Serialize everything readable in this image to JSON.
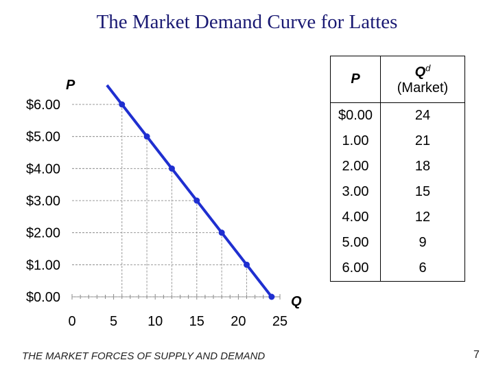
{
  "slide": {
    "title": "The Market Demand Curve for Lattes",
    "footer": "THE MARKET FORCES OF SUPPLY AND DEMAND",
    "page_number": "7"
  },
  "table": {
    "header_price": "P",
    "header_qty_main": "Q",
    "header_qty_sup": "d",
    "header_qty_sub": "(Market)",
    "rows": [
      {
        "price": "$0.00",
        "qty": "24"
      },
      {
        "price": "1.00",
        "qty": "21"
      },
      {
        "price": "2.00",
        "qty": "18"
      },
      {
        "price": "3.00",
        "qty": "15"
      },
      {
        "price": "4.00",
        "qty": "12"
      },
      {
        "price": "5.00",
        "qty": "9"
      },
      {
        "price": "6.00",
        "qty": "6"
      }
    ]
  },
  "chart_data": {
    "type": "line",
    "title": "",
    "xlabel": "Q",
    "ylabel": "P",
    "xlim": [
      0,
      25
    ],
    "ylim": [
      0,
      6
    ],
    "x_ticks": [
      "0",
      "5",
      "10",
      "15",
      "20",
      "25"
    ],
    "y_ticks": [
      "$0.00",
      "$1.00",
      "$2.00",
      "$3.00",
      "$4.00",
      "$5.00",
      "$6.00"
    ],
    "grid": "dashed drop lines to points",
    "series": [
      {
        "color": "#1f2fd0",
        "points": [
          {
            "x": 6,
            "y": 6
          },
          {
            "x": 9,
            "y": 5
          },
          {
            "x": 12,
            "y": 4
          },
          {
            "x": 15,
            "y": 3
          },
          {
            "x": 18,
            "y": 2
          },
          {
            "x": 21,
            "y": 1
          },
          {
            "x": 24,
            "y": 0
          }
        ]
      }
    ]
  }
}
